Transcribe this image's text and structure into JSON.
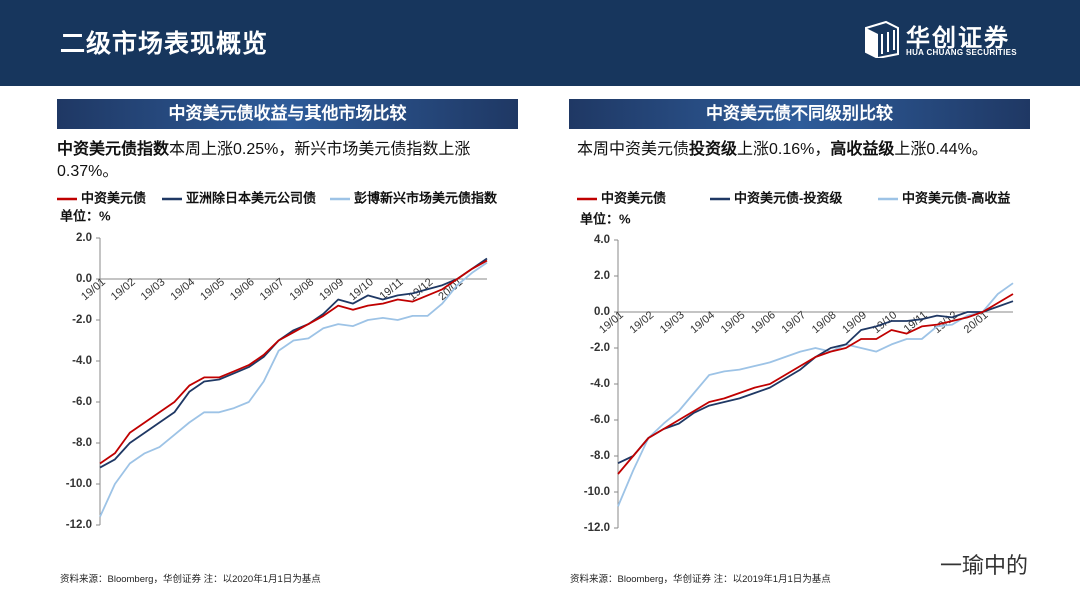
{
  "header": {
    "title": "二级市场表现概览",
    "logo_cn": "华创证券",
    "logo_en": "HUA CHUANG SECURITIES"
  },
  "panels": [
    {
      "title": "中资美元债收益与其他市场比较",
      "text": [
        {
          "text": "中资美元债指数",
          "bold": true
        },
        {
          "text": "本周上涨0.25%，新兴市场美元债指数上涨0.37%。",
          "bold": false
        }
      ],
      "source": "资料来源：Bloomberg，华创证券   注：以2020年1月1日为基点"
    },
    {
      "title": "中资美元债不同级别比较",
      "text": [
        {
          "text": "本周中资美元债",
          "bold": false
        },
        {
          "text": "投资级",
          "bold": true
        },
        {
          "text": "上涨0.16%，",
          "bold": false
        },
        {
          "text": "高收益级",
          "bold": true
        },
        {
          "text": "上涨0.44%。",
          "bold": false
        }
      ],
      "source": "资料来源：Bloomberg，华创证券   注：以2019年1月1日为基点"
    }
  ],
  "watermark": "一瑜中的",
  "chart_data": [
    {
      "type": "line",
      "unit_label": "单位：%",
      "categories": [
        "19/01",
        null,
        "19/02",
        null,
        "19/03",
        null,
        "19/04",
        null,
        "19/05",
        null,
        "19/06",
        null,
        "19/07",
        null,
        "19/08",
        null,
        "19/09",
        null,
        "19/10",
        null,
        "19/11",
        null,
        "19/12",
        null,
        "20/01",
        null,
        null
      ],
      "series": [
        {
          "name": "中资美元债",
          "color": "#c00000",
          "values": [
            -9.0,
            -8.5,
            -7.5,
            -7.0,
            -6.5,
            -6.0,
            -5.2,
            -4.8,
            -4.8,
            -4.5,
            -4.2,
            -3.7,
            -3.0,
            -2.6,
            -2.2,
            -1.8,
            -1.3,
            -1.5,
            -1.3,
            -1.2,
            -1.0,
            -1.1,
            -0.8,
            -0.5,
            0.0,
            0.5,
            0.9
          ]
        },
        {
          "name": "亚洲除日本美元公司债",
          "color": "#1f3864",
          "values": [
            -9.2,
            -8.8,
            -8.0,
            -7.5,
            -7.0,
            -6.5,
            -5.5,
            -5.0,
            -4.9,
            -4.6,
            -4.3,
            -3.8,
            -3.0,
            -2.5,
            -2.2,
            -1.7,
            -1.0,
            -1.2,
            -0.8,
            -1.0,
            -0.8,
            -0.7,
            -0.5,
            -0.3,
            0.0,
            0.5,
            1.0
          ]
        },
        {
          "name": "彭博新兴市场美元债指数",
          "color": "#9dc3e6",
          "values": [
            -11.6,
            -10.0,
            -9.0,
            -8.5,
            -8.2,
            -7.6,
            -7.0,
            -6.5,
            -6.5,
            -6.3,
            -6.0,
            -5.0,
            -3.5,
            -3.0,
            -2.9,
            -2.4,
            -2.2,
            -2.3,
            -2.0,
            -1.9,
            -2.0,
            -1.8,
            -1.8,
            -1.2,
            -0.3,
            0.3,
            0.8
          ]
        }
      ],
      "ylim": [
        -12,
        2
      ],
      "yticks": [
        {
          "value": -12,
          "label": "-12.0"
        },
        {
          "value": -10,
          "label": "-10.0"
        },
        {
          "value": -8,
          "label": "-8.0"
        },
        {
          "value": -6,
          "label": "-6.0"
        },
        {
          "value": -4,
          "label": "-4.0"
        },
        {
          "value": -2,
          "label": "-2.0"
        },
        {
          "value": 0,
          "label": "0.0"
        },
        {
          "value": 2,
          "label": "2.0"
        }
      ]
    },
    {
      "type": "line",
      "unit_label": "单位：%",
      "categories": [
        "19/01",
        null,
        "19/02",
        null,
        "19/03",
        null,
        "19/04",
        null,
        "19/05",
        null,
        "19/06",
        null,
        "19/07",
        null,
        "19/08",
        null,
        "19/09",
        null,
        "19/10",
        null,
        "19/11",
        null,
        "19/12",
        null,
        "20/01",
        null,
        null
      ],
      "series": [
        {
          "name": "中资美元债",
          "color": "#c00000",
          "values": [
            -9.0,
            -8.0,
            -7.0,
            -6.5,
            -6.0,
            -5.5,
            -5.0,
            -4.8,
            -4.5,
            -4.2,
            -4.0,
            -3.5,
            -3.0,
            -2.5,
            -2.2,
            -2.0,
            -1.5,
            -1.5,
            -1.0,
            -1.2,
            -0.8,
            -0.7,
            -0.5,
            -0.3,
            0.0,
            0.5,
            1.0
          ]
        },
        {
          "name": "中资美元债-投资级",
          "color": "#1f3864",
          "values": [
            -8.4,
            -8.0,
            -7.0,
            -6.5,
            -6.2,
            -5.6,
            -5.2,
            -5.0,
            -4.8,
            -4.5,
            -4.2,
            -3.7,
            -3.2,
            -2.5,
            -2.0,
            -1.8,
            -1.0,
            -0.8,
            -0.5,
            -0.5,
            -0.4,
            -0.2,
            -0.3,
            0.0,
            0.0,
            0.3,
            0.6
          ]
        },
        {
          "name": "中资美元债-高收益",
          "color": "#9dc3e6",
          "values": [
            -10.8,
            -8.8,
            -7.0,
            -6.2,
            -5.5,
            -4.5,
            -3.5,
            -3.3,
            -3.2,
            -3.0,
            -2.8,
            -2.5,
            -2.2,
            -2.0,
            -2.2,
            -1.8,
            -2.0,
            -2.2,
            -1.8,
            -1.5,
            -1.5,
            -0.8,
            -0.7,
            -0.2,
            0.0,
            1.0,
            1.6
          ]
        }
      ],
      "ylim": [
        -12,
        4
      ],
      "yticks": [
        {
          "value": -12,
          "label": "-12.0"
        },
        {
          "value": -10,
          "label": "-10.0"
        },
        {
          "value": -8,
          "label": "-8.0"
        },
        {
          "value": -6,
          "label": "-6.0"
        },
        {
          "value": -4,
          "label": "-4.0"
        },
        {
          "value": -2,
          "label": "-2.0"
        },
        {
          "value": 0,
          "label": "0.0"
        },
        {
          "value": 2,
          "label": "2.0"
        },
        {
          "value": 4,
          "label": "4.0"
        }
      ]
    }
  ]
}
